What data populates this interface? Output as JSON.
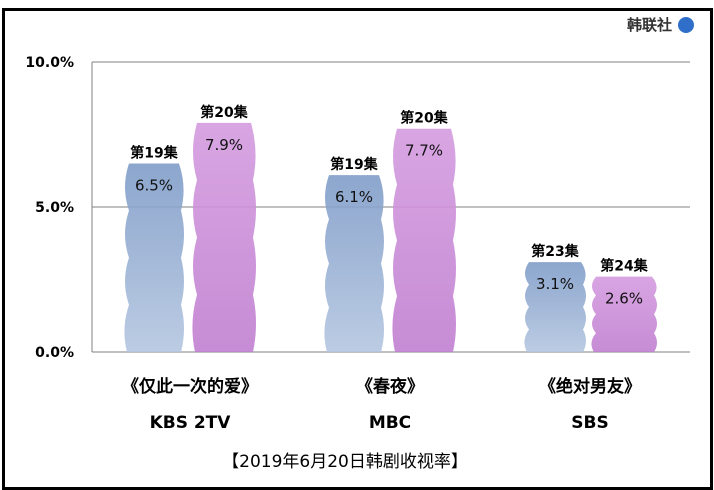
{
  "logo": {
    "text": "韩联社"
  },
  "chart_data": {
    "type": "bar",
    "title": "【2019年6月20日韩剧收视率】",
    "categories": [
      {
        "drama": "《仅此一次的爱》",
        "network": "KBS 2TV"
      },
      {
        "drama": "《春夜》",
        "network": "MBC"
      },
      {
        "drama": "《绝对男友》",
        "network": "SBS"
      }
    ],
    "bars": [
      [
        {
          "episode": "第19集",
          "value": 6.5,
          "label": "6.5%"
        },
        {
          "episode": "第20集",
          "value": 7.9,
          "label": "7.9%"
        }
      ],
      [
        {
          "episode": "第19集",
          "value": 6.1,
          "label": "6.1%"
        },
        {
          "episode": "第20集",
          "value": 7.7,
          "label": "7.7%"
        }
      ],
      [
        {
          "episode": "第23集",
          "value": 3.1,
          "label": "3.1%"
        },
        {
          "episode": "第24集",
          "value": 2.6,
          "label": "2.6%"
        }
      ]
    ],
    "ylim": [
      0,
      10
    ],
    "yticks": [
      {
        "value": 0,
        "label": "0.0%"
      },
      {
        "value": 5,
        "label": "5.0%"
      },
      {
        "value": 10,
        "label": "10.0%"
      }
    ],
    "grid": true,
    "colors": {
      "first": "#8fa9cf",
      "second": "#c98fd6",
      "axis": "#808080"
    }
  }
}
